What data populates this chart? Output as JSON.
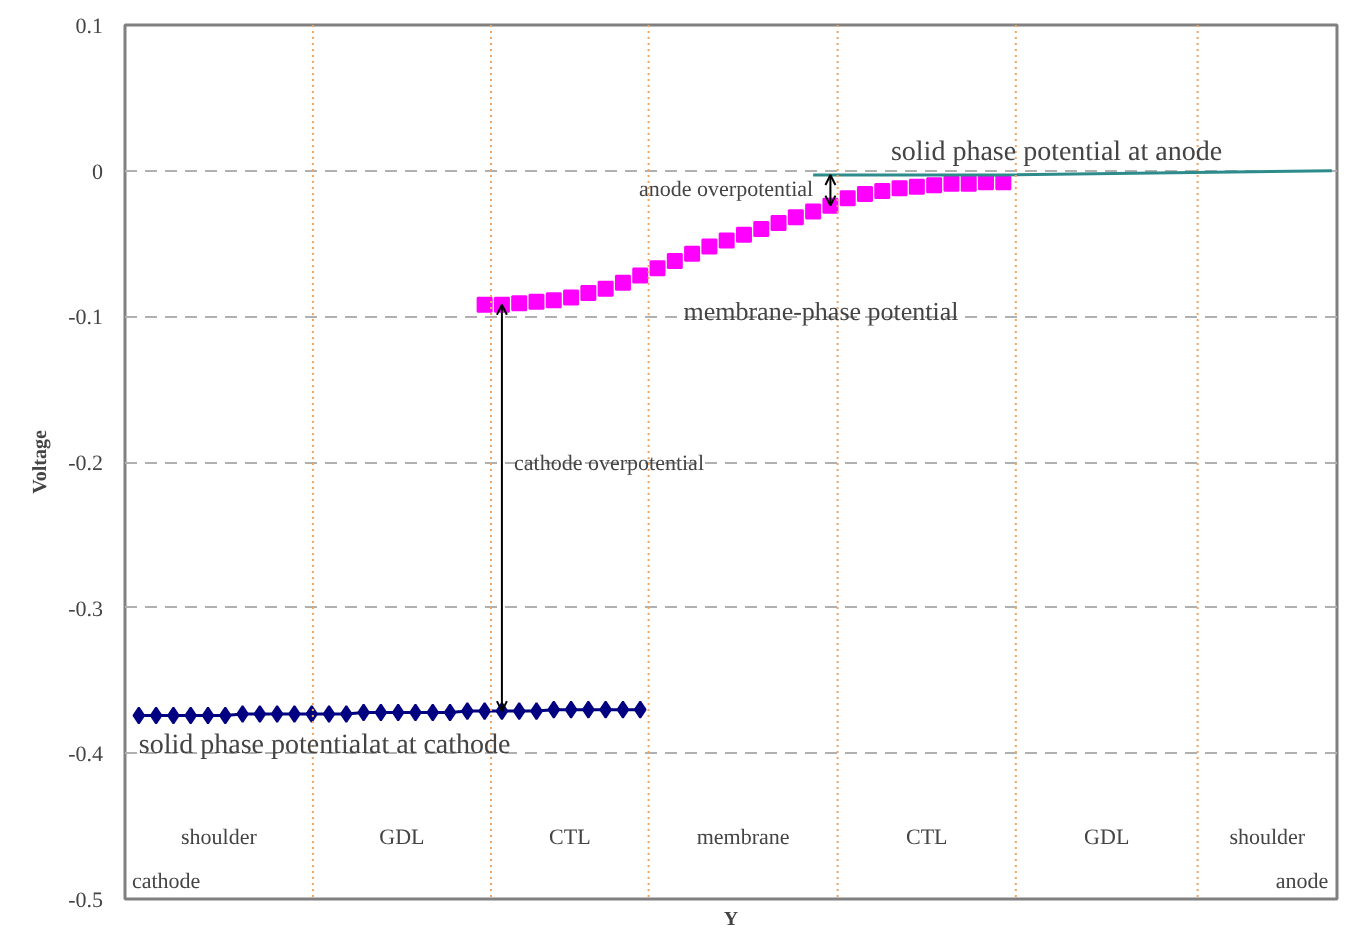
{
  "chart_data": {
    "type": "line",
    "xlabel": "Y",
    "ylabel": "Voltage",
    "categories": [
      null,
      null,
      null,
      null,
      null,
      null,
      null,
      null,
      null,
      null,
      null,
      null,
      null,
      null,
      null,
      null,
      null,
      null,
      null,
      null,
      null,
      null,
      null,
      null,
      null,
      null,
      null,
      null,
      null,
      null,
      null,
      null,
      null,
      null,
      null,
      null,
      null,
      null,
      null,
      null,
      null,
      null,
      null,
      null,
      null,
      null,
      null,
      null,
      null,
      null,
      null,
      null,
      null,
      null,
      null,
      null,
      null,
      null,
      null,
      null,
      null,
      null,
      null,
      null,
      null,
      null,
      null,
      null,
      null,
      null
    ],
    "series": [
      {
        "color": "#000080",
        "marker": "diamond",
        "values": [
          -0.374,
          -0.374,
          -0.374,
          -0.374,
          -0.374,
          -0.374,
          -0.373,
          -0.373,
          -0.373,
          -0.373,
          -0.373,
          -0.373,
          -0.373,
          -0.372,
          -0.372,
          -0.372,
          -0.372,
          -0.372,
          -0.372,
          -0.371,
          -0.371,
          -0.371,
          -0.371,
          -0.371,
          -0.37,
          -0.37,
          -0.37,
          -0.37,
          -0.37,
          -0.37,
          null,
          null,
          null,
          null,
          null,
          null,
          null,
          null,
          null,
          null,
          null,
          null,
          null,
          null,
          null,
          null,
          null,
          null,
          null,
          null,
          null,
          null,
          null,
          null,
          null,
          null,
          null,
          null,
          null,
          null,
          null,
          null,
          null,
          null,
          null,
          null,
          null,
          null,
          null,
          null
        ]
      },
      {
        "color": "#ff00ff",
        "type": "scatter",
        "marker": "square",
        "values": [
          null,
          null,
          null,
          null,
          null,
          null,
          null,
          null,
          null,
          null,
          null,
          null,
          null,
          null,
          null,
          null,
          null,
          null,
          null,
          null,
          -0.092,
          -0.092,
          -0.091,
          -0.09,
          -0.089,
          -0.087,
          -0.084,
          -0.081,
          -0.077,
          -0.072,
          -0.067,
          -0.062,
          -0.057,
          -0.052,
          -0.048,
          -0.044,
          -0.04,
          -0.036,
          -0.032,
          -0.028,
          -0.024,
          -0.019,
          -0.016,
          -0.014,
          -0.012,
          -0.011,
          -0.01,
          -0.009,
          -0.009,
          -0.008,
          -0.008,
          null,
          null,
          null,
          null,
          null,
          null,
          null,
          null,
          null,
          null,
          null,
          null,
          null,
          null,
          null,
          null,
          null,
          null,
          null
        ]
      },
      {
        "color": "#2e8b8b",
        "marker": "none",
        "values": [
          null,
          null,
          null,
          null,
          null,
          null,
          null,
          null,
          null,
          null,
          null,
          null,
          null,
          null,
          null,
          null,
          null,
          null,
          null,
          null,
          null,
          null,
          null,
          null,
          null,
          null,
          null,
          null,
          null,
          null,
          null,
          null,
          null,
          null,
          null,
          null,
          null,
          null,
          null,
          -0.003,
          null,
          null,
          null,
          null,
          null,
          null,
          null,
          null,
          null,
          null,
          -0.003,
          null,
          null,
          null,
          null,
          null,
          null,
          null,
          null,
          null,
          null,
          null,
          null,
          null,
          null,
          null,
          null,
          null,
          null,
          0
        ]
      }
    ],
    "annotations": [
      "solid phase potential at anode",
      "anode overpotential",
      "membrane-phase potential",
      "cathode overpotential",
      "solid phase potentialat at cathode",
      "cathode",
      "anode",
      "shoulder",
      "GDL",
      "CTL",
      "membrane",
      "CTL",
      "GDL",
      "shoulder"
    ],
    "ylim": [
      -0.5,
      0.1
    ],
    "yticks": [
      0.1,
      0,
      -0.1,
      -0.2,
      -0.3,
      -0.4,
      -0.5
    ],
    "grid": "y",
    "tick_labels": "y"
  }
}
